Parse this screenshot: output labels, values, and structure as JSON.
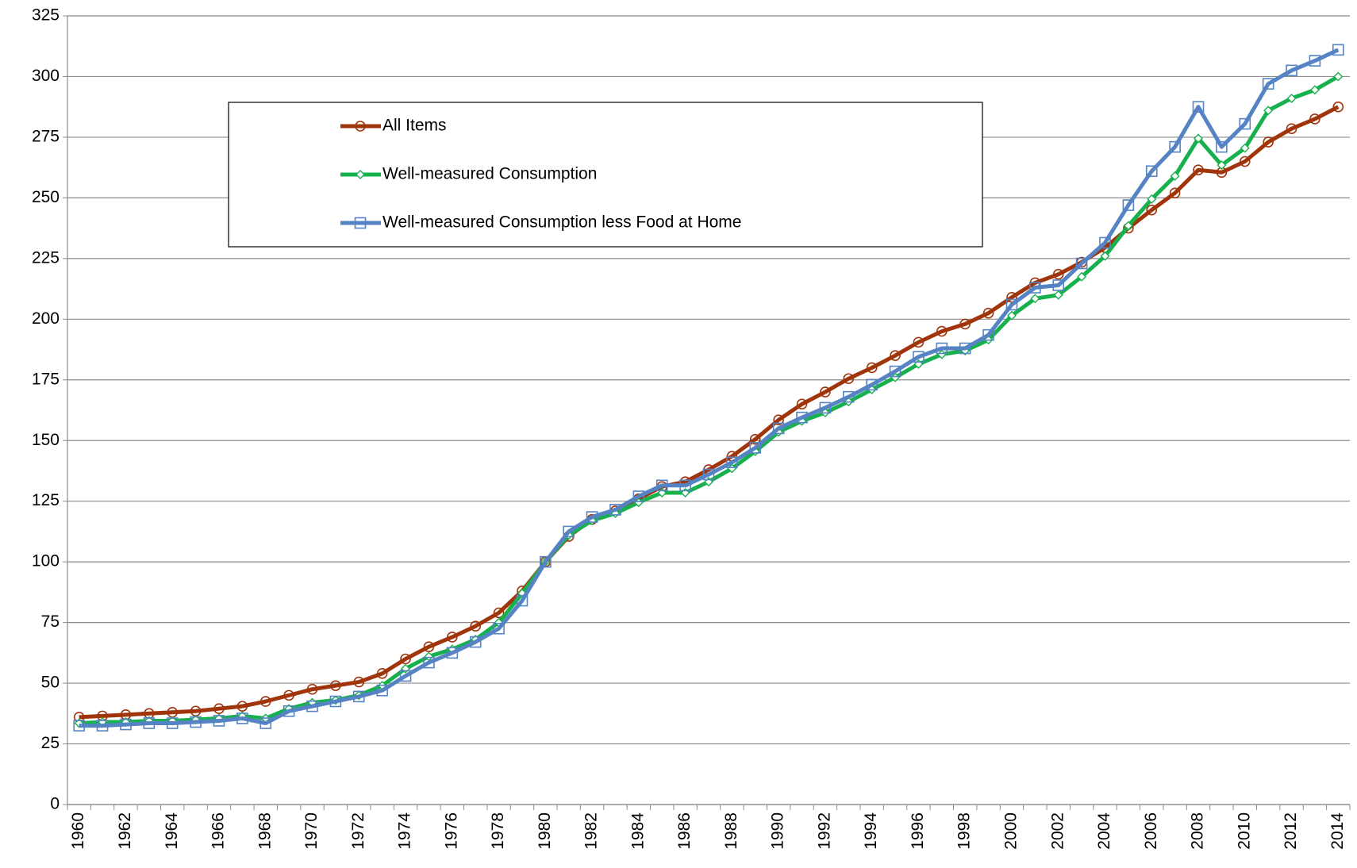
{
  "chart_data": {
    "type": "line",
    "categories": [
      "1960",
      null,
      "1962",
      null,
      "1964",
      null,
      "1966",
      null,
      "1968",
      null,
      "1970",
      null,
      "1972",
      null,
      "1974",
      null,
      "1976",
      null,
      "1978",
      null,
      "1980",
      null,
      "1982",
      null,
      "1984",
      null,
      "1986",
      null,
      "1988",
      null,
      "1990",
      null,
      "1992",
      null,
      "1994",
      null,
      "1996",
      null,
      "1998",
      null,
      "2000",
      null,
      "2002",
      null,
      "2004",
      null,
      "2006",
      null,
      "2008",
      null,
      "2010",
      null,
      "2012",
      null,
      "2014"
    ],
    "series": [
      {
        "name": "All Items",
        "color": "#a0340b",
        "marker": "circle",
        "values": [
          36,
          36.5,
          37,
          37.5,
          38,
          38.5,
          39.5,
          40.5,
          42.5,
          45,
          47.5,
          49,
          50.5,
          54,
          60,
          65,
          69,
          73.5,
          79,
          88,
          100,
          110.5,
          117.5,
          121,
          126,
          131,
          133,
          138,
          143.5,
          150.5,
          158.5,
          165,
          170,
          175.5,
          180,
          185,
          190.5,
          195,
          198,
          202.5,
          209,
          215,
          218.5,
          223.5,
          229.5,
          237.5,
          245,
          252,
          261.5,
          260.5,
          265,
          273,
          278.5,
          282.5,
          287.5
        ]
      },
      {
        "name": "Well-measured Consumption",
        "color": "#16b14c",
        "marker": "diamond",
        "values": [
          33.5,
          34,
          34,
          34.5,
          34.5,
          35,
          35.5,
          36.5,
          35.5,
          39.5,
          42,
          43,
          45,
          49,
          56,
          61,
          64,
          68,
          75,
          87,
          100,
          111,
          117,
          120,
          124.5,
          128.5,
          128.5,
          133,
          138.5,
          145.5,
          153.5,
          158,
          161.5,
          166,
          171,
          176,
          181.5,
          185.5,
          187,
          191.5,
          201.5,
          208.5,
          210,
          217.5,
          226,
          238.5,
          249.5,
          259,
          274.5,
          263.5,
          270.5,
          286,
          291,
          294.5,
          300
        ]
      },
      {
        "name": "Well-measured Consumption less Food at Home",
        "color": "#5583c4",
        "marker": "square",
        "values": [
          32.5,
          32.5,
          33,
          33.5,
          33.5,
          34,
          34.5,
          35.5,
          33.5,
          38.5,
          40.5,
          42.5,
          44.5,
          47,
          53,
          58.5,
          62.5,
          67,
          72.5,
          84,
          100,
          112.5,
          118.5,
          121.5,
          127,
          131.5,
          131.5,
          136,
          141,
          147,
          155,
          159.5,
          163.5,
          168,
          173,
          178.5,
          184.5,
          188,
          188,
          193.5,
          206,
          213,
          214,
          223,
          231.5,
          247,
          261,
          271,
          287.5,
          271,
          280.5,
          297,
          302.5,
          306.5,
          311
        ]
      }
    ],
    "ylim": [
      0,
      325
    ],
    "yticks": [
      0,
      25,
      50,
      75,
      100,
      125,
      150,
      175,
      200,
      225,
      250,
      275,
      300,
      325
    ],
    "grid": true,
    "legend": "top-left"
  }
}
